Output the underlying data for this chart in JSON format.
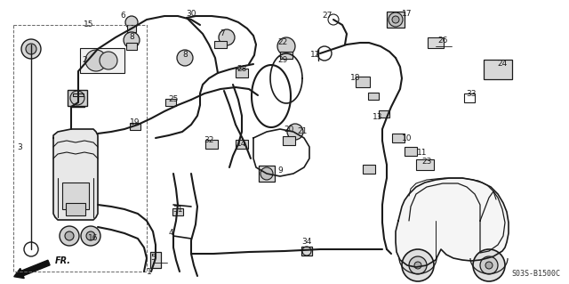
{
  "bg_color": "#ffffff",
  "line_color": "#1a1a1a",
  "diagram_code": "S03S-B1500C",
  "figsize": [
    6.4,
    3.19
  ],
  "dpi": 100
}
